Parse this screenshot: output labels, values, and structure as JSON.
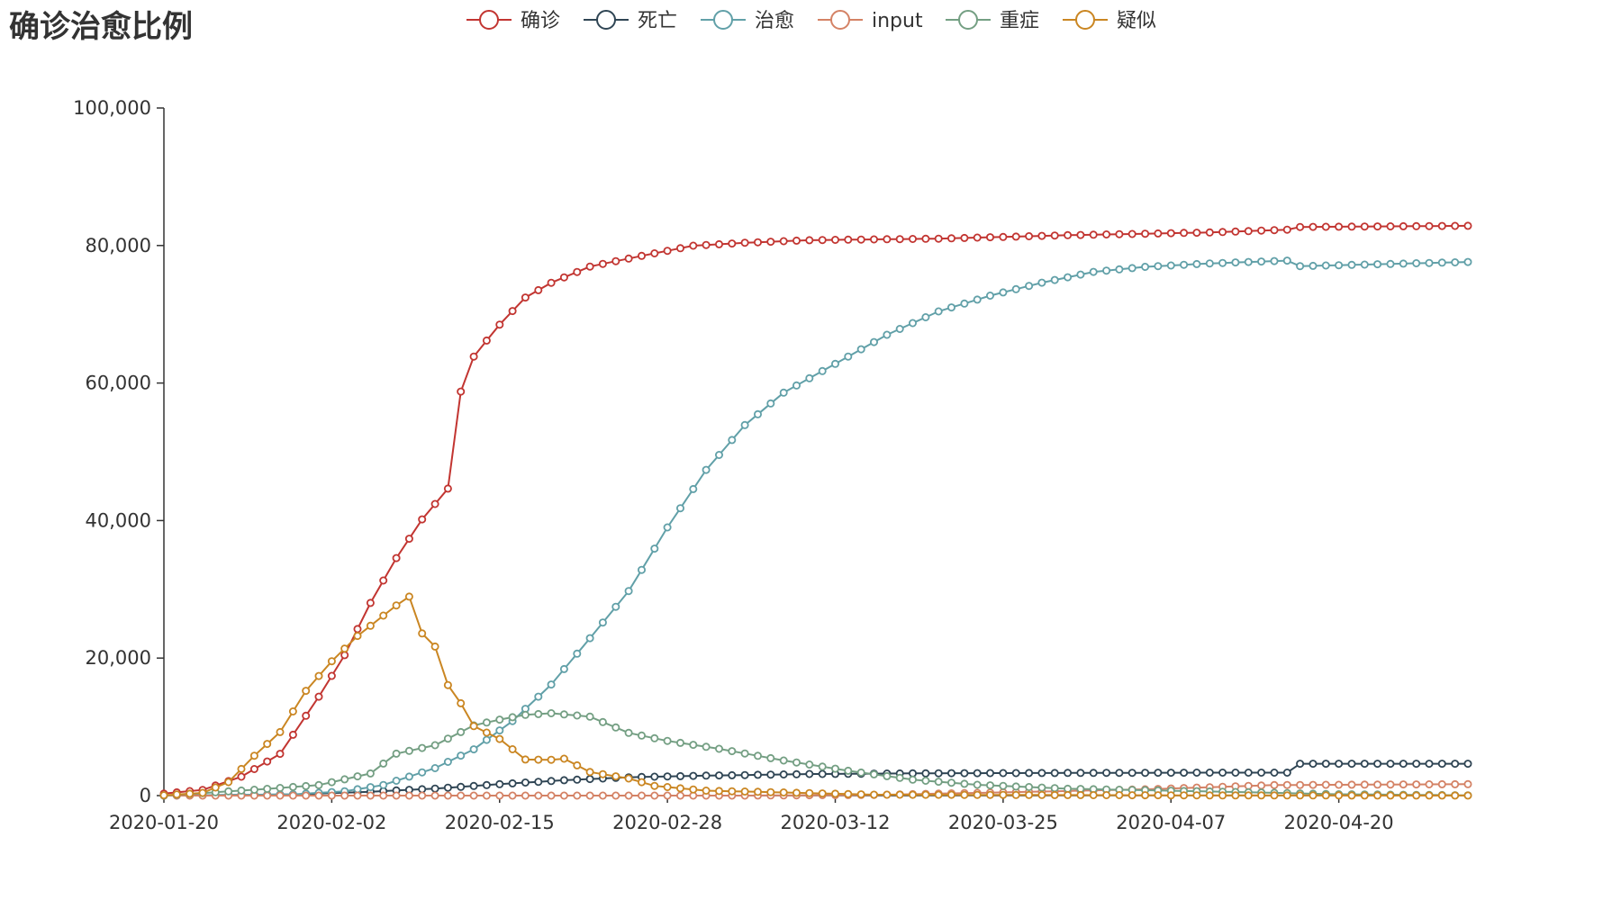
{
  "chart_data": {
    "type": "line",
    "title": "确诊治愈比例",
    "xlabel": "",
    "ylabel": "",
    "ylim": [
      0,
      100000
    ],
    "y_ticks": [
      "0",
      "20,000",
      "40,000",
      "60,000",
      "80,000",
      "100,000"
    ],
    "y_tick_values": [
      0,
      20000,
      40000,
      60000,
      80000,
      100000
    ],
    "x_range": [
      "2020-01-20",
      "2020-04-30"
    ],
    "x_ticks": [
      "2020-01-20",
      "2020-02-02",
      "2020-02-15",
      "2020-02-28",
      "2020-03-12",
      "2020-03-25",
      "2020-04-07",
      "2020-04-20"
    ],
    "grid": false,
    "legend_position": "top-center",
    "series": [
      {
        "name": "确诊",
        "color": "#c23531",
        "points": [
          [
            "2020-01-20",
            291
          ],
          [
            "2020-01-23",
            830
          ],
          [
            "2020-01-26",
            2744
          ],
          [
            "2020-01-29",
            6078
          ],
          [
            "2020-02-01",
            14380
          ],
          [
            "2020-02-03",
            20438
          ],
          [
            "2020-02-05",
            28018
          ],
          [
            "2020-02-07",
            34546
          ],
          [
            "2020-02-09",
            40171
          ],
          [
            "2020-02-11",
            44653
          ],
          [
            "2020-02-12",
            58761
          ],
          [
            "2020-02-13",
            63851
          ],
          [
            "2020-02-15",
            68500
          ],
          [
            "2020-02-17",
            72436
          ],
          [
            "2020-02-19",
            74576
          ],
          [
            "2020-02-22",
            76936
          ],
          [
            "2020-02-26",
            78497
          ],
          [
            "2020-03-01",
            79971
          ],
          [
            "2020-03-05",
            80400
          ],
          [
            "2020-03-10",
            80778
          ],
          [
            "2020-03-20",
            81000
          ],
          [
            "2020-03-30",
            81500
          ],
          [
            "2020-04-10",
            81900
          ],
          [
            "2020-04-16",
            82300
          ],
          [
            "2020-04-17",
            82700
          ],
          [
            "2020-04-30",
            82870
          ]
        ]
      },
      {
        "name": "死亡",
        "color": "#2f4554",
        "points": [
          [
            "2020-01-20",
            6
          ],
          [
            "2020-01-30",
            170
          ],
          [
            "2020-02-05",
            563
          ],
          [
            "2020-02-10",
            1016
          ],
          [
            "2020-02-15",
            1665
          ],
          [
            "2020-02-20",
            2236
          ],
          [
            "2020-02-25",
            2663
          ],
          [
            "2020-03-01",
            2870
          ],
          [
            "2020-03-10",
            3136
          ],
          [
            "2020-03-20",
            3250
          ],
          [
            "2020-04-10",
            3339
          ],
          [
            "2020-04-16",
            3342
          ],
          [
            "2020-04-17",
            4632
          ],
          [
            "2020-04-30",
            4633
          ]
        ]
      },
      {
        "name": "治愈",
        "color": "#61a0a8",
        "points": [
          [
            "2020-01-20",
            25
          ],
          [
            "2020-01-30",
            170
          ],
          [
            "2020-02-03",
            630
          ],
          [
            "2020-02-06",
            1540
          ],
          [
            "2020-02-10",
            3996
          ],
          [
            "2020-02-13",
            6723
          ],
          [
            "2020-02-16",
            10844
          ],
          [
            "2020-02-19",
            16155
          ],
          [
            "2020-02-22",
            22888
          ],
          [
            "2020-02-25",
            29745
          ],
          [
            "2020-02-28",
            39002
          ],
          [
            "2020-03-02",
            47367
          ],
          [
            "2020-03-05",
            53888
          ],
          [
            "2020-03-08",
            58600
          ],
          [
            "2020-03-12",
            62793
          ],
          [
            "2020-03-16",
            67017
          ],
          [
            "2020-03-20",
            70420
          ],
          [
            "2020-03-24",
            72703
          ],
          [
            "2020-03-28",
            74588
          ],
          [
            "2020-04-01",
            76160
          ],
          [
            "2020-04-05",
            76900
          ],
          [
            "2020-04-10",
            77400
          ],
          [
            "2020-04-16",
            77800
          ],
          [
            "2020-04-17",
            77000
          ],
          [
            "2020-04-30",
            77600
          ]
        ]
      },
      {
        "name": "input",
        "color": "#d48265",
        "points": [
          [
            "2020-01-20",
            0
          ],
          [
            "2020-03-05",
            0
          ],
          [
            "2020-03-15",
            100
          ],
          [
            "2020-03-25",
            474
          ],
          [
            "2020-04-05",
            913
          ],
          [
            "2020-04-15",
            1534
          ],
          [
            "2020-04-30",
            1660
          ]
        ]
      },
      {
        "name": "重症",
        "color": "#749f83",
        "points": [
          [
            "2020-01-20",
            0
          ],
          [
            "2020-01-28",
            976
          ],
          [
            "2020-02-01",
            1527
          ],
          [
            "2020-02-05",
            3219
          ],
          [
            "2020-02-07",
            6101
          ],
          [
            "2020-02-10",
            7333
          ],
          [
            "2020-02-13",
            10204
          ],
          [
            "2020-02-15",
            11053
          ],
          [
            "2020-02-17",
            11741
          ],
          [
            "2020-02-19",
            11977
          ],
          [
            "2020-02-22",
            11477
          ],
          [
            "2020-02-25",
            9126
          ],
          [
            "2020-02-28",
            7952
          ],
          [
            "2020-03-03",
            6806
          ],
          [
            "2020-03-08",
            5111
          ],
          [
            "2020-03-13",
            3610
          ],
          [
            "2020-03-18",
            2314
          ],
          [
            "2020-03-23",
            1573
          ],
          [
            "2020-03-30",
            1000
          ],
          [
            "2020-04-10",
            600
          ],
          [
            "2020-04-20",
            200
          ],
          [
            "2020-04-30",
            40
          ]
        ]
      },
      {
        "name": "疑似",
        "color": "#ca8622",
        "points": [
          [
            "2020-01-20",
            54
          ],
          [
            "2020-01-23",
            393
          ],
          [
            "2020-01-25",
            1965
          ],
          [
            "2020-01-27",
            5794
          ],
          [
            "2020-01-29",
            9239
          ],
          [
            "2020-01-31",
            15238
          ],
          [
            "2020-02-02",
            19544
          ],
          [
            "2020-02-04",
            23214
          ],
          [
            "2020-02-05",
            24702
          ],
          [
            "2020-02-07",
            27657
          ],
          [
            "2020-02-08",
            28942
          ],
          [
            "2020-02-09",
            23589
          ],
          [
            "2020-02-10",
            21675
          ],
          [
            "2020-02-11",
            16067
          ],
          [
            "2020-02-12",
            13435
          ],
          [
            "2020-02-13",
            10109
          ],
          [
            "2020-02-15",
            8228
          ],
          [
            "2020-02-17",
            5248
          ],
          [
            "2020-02-19",
            5206
          ],
          [
            "2020-02-20",
            5365
          ],
          [
            "2020-02-22",
            3434
          ],
          [
            "2020-02-25",
            2491
          ],
          [
            "2020-02-27",
            1418
          ],
          [
            "2020-03-02",
            715
          ],
          [
            "2020-03-08",
            458
          ],
          [
            "2020-03-15",
            134
          ],
          [
            "2020-03-25",
            100
          ],
          [
            "2020-04-10",
            30
          ],
          [
            "2020-04-30",
            10
          ]
        ]
      }
    ]
  }
}
